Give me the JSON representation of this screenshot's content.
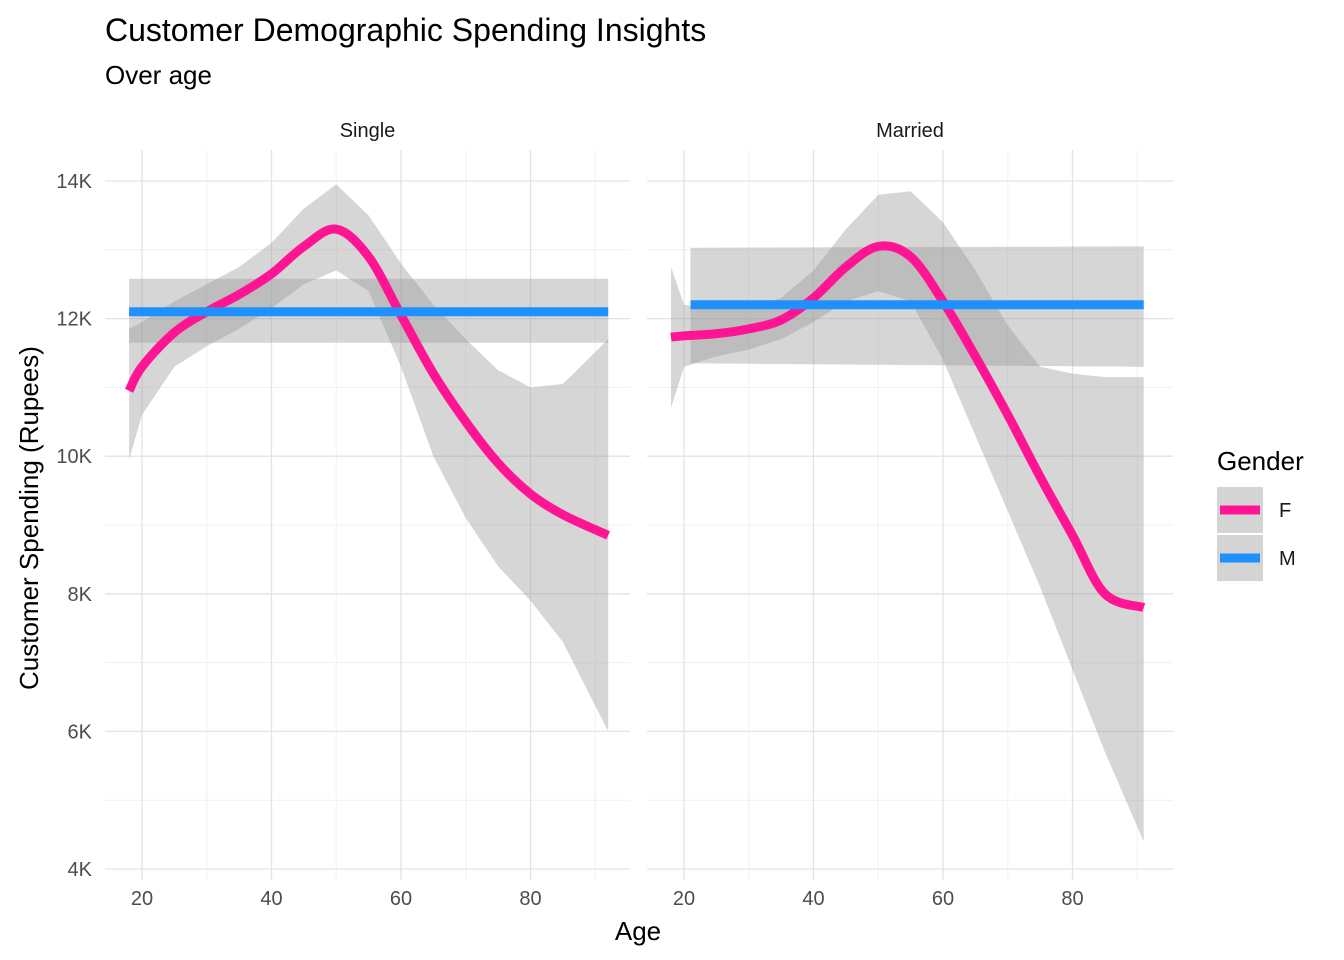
{
  "chart_data": {
    "type": "line",
    "title": "Customer Demographic Spending Insights",
    "subtitle": "Over age",
    "xlabel": "Age",
    "ylabel": "Customer Spending (Rupees)",
    "xlim": [
      15,
      96
    ],
    "ylim": [
      4000,
      14300
    ],
    "x_ticks": [
      20,
      40,
      60,
      80
    ],
    "x_tick_labels": [
      "20",
      "40",
      "60",
      "80"
    ],
    "y_ticks": [
      4000,
      6000,
      8000,
      10000,
      12000,
      14000
    ],
    "y_tick_labels": [
      "4K",
      "6K",
      "8K",
      "10K",
      "12K",
      "14K"
    ],
    "grid": true,
    "legend": {
      "title": "Gender",
      "position": "right",
      "entries": [
        {
          "label": "F",
          "color": "#FF1493"
        },
        {
          "label": "M",
          "color": "#1E90FF"
        }
      ]
    },
    "band_color": "#999999",
    "panels": [
      {
        "strip": "Single",
        "series": [
          {
            "name": "F",
            "color": "#FF1493",
            "x": [
              18,
              20,
              25,
              30,
              35,
              40,
              45,
              50,
              55,
              60,
              65,
              70,
              75,
              80,
              85,
              92
            ],
            "y": [
              10950,
              11300,
              11800,
              12100,
              12350,
              12650,
              13050,
              13300,
              12900,
              12050,
              11200,
              10500,
              9900,
              9450,
              9150,
              8850
            ],
            "lower": [
              9950,
              10600,
              11300,
              11600,
              11850,
              12150,
              12500,
              12700,
              12400,
              11300,
              10000,
              9100,
              8400,
              7900,
              7300,
              6000
            ],
            "upper": [
              11850,
              11950,
              12250,
              12500,
              12750,
              13100,
              13600,
              13950,
              13500,
              12800,
              12200,
              11700,
              11250,
              11000,
              11050,
              11700
            ]
          },
          {
            "name": "M",
            "color": "#1E90FF",
            "x": [
              18,
              92
            ],
            "y": [
              12100,
              12100
            ],
            "lower": [
              11650,
              11650
            ],
            "upper": [
              12580,
              12580
            ]
          }
        ]
      },
      {
        "strip": "Married",
        "series": [
          {
            "name": "F",
            "color": "#FF1493",
            "x": [
              18,
              20,
              25,
              30,
              35,
              40,
              45,
              50,
              55,
              60,
              65,
              70,
              75,
              80,
              85,
              91
            ],
            "y": [
              11730,
              11750,
              11780,
              11850,
              11980,
              12300,
              12750,
              13050,
              12900,
              12250,
              11450,
              10600,
              9700,
              8850,
              8000,
              7800
            ],
            "lower": [
              10700,
              11300,
              11450,
              11550,
              11700,
              11950,
              12250,
              12400,
              12250,
              11400,
              10300,
              9200,
              8100,
              6900,
              5700,
              4400
            ],
            "upper": [
              12750,
              12200,
              12150,
              12150,
              12300,
              12700,
              13300,
              13800,
              13850,
              13400,
              12700,
              11900,
              11300,
              11200,
              11150,
              11150
            ]
          },
          {
            "name": "M",
            "color": "#1E90FF",
            "x": [
              21,
              91
            ],
            "y": [
              12200,
              12200
            ],
            "lower": [
              11350,
              11300
            ],
            "upper": [
              13030,
              13050
            ]
          }
        ]
      }
    ]
  }
}
